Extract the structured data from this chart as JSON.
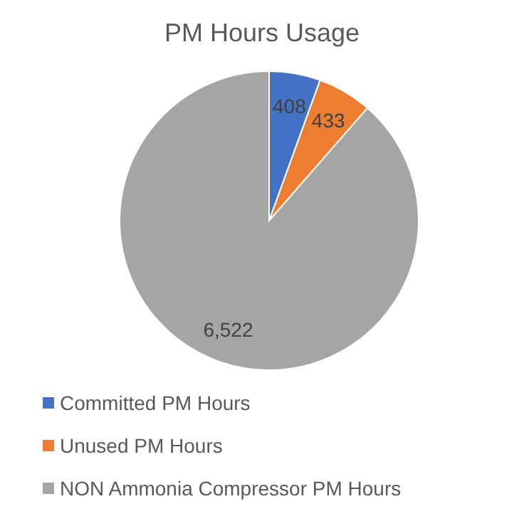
{
  "chart_data": {
    "type": "pie",
    "title": "PM Hours Usage",
    "categories": [
      "Committed PM Hours",
      "Unused PM Hours",
      "NON Ammonia Compressor PM Hours"
    ],
    "values": [
      408,
      433,
      6522
    ],
    "value_labels": [
      "408",
      "433",
      "6,522"
    ],
    "colors": [
      "#4472c4",
      "#ed7d31",
      "#a5a5a5"
    ],
    "legend": "bottom"
  }
}
